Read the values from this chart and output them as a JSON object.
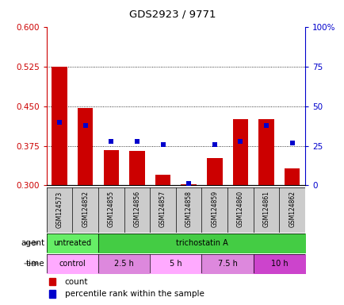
{
  "title": "GDS2923 / 9771",
  "samples": [
    "GSM124573",
    "GSM124852",
    "GSM124855",
    "GSM124856",
    "GSM124857",
    "GSM124858",
    "GSM124859",
    "GSM124860",
    "GSM124861",
    "GSM124862"
  ],
  "count_values": [
    0.525,
    0.447,
    0.367,
    0.365,
    0.32,
    0.302,
    0.352,
    0.425,
    0.425,
    0.332
  ],
  "percentile_values": [
    40,
    38,
    28,
    28,
    26,
    1,
    26,
    28,
    38,
    27
  ],
  "ylim_left": [
    0.3,
    0.6
  ],
  "yticks_left": [
    0.3,
    0.375,
    0.45,
    0.525,
    0.6
  ],
  "ylim_right": [
    0,
    100
  ],
  "yticks_right": [
    0,
    25,
    50,
    75,
    100
  ],
  "yticklabels_right": [
    "0",
    "25",
    "50",
    "75",
    "100%"
  ],
  "count_color": "#cc0000",
  "percentile_color": "#0000cc",
  "agent_row": [
    {
      "label": "untreated",
      "start": 0,
      "end": 2,
      "color": "#66ee66"
    },
    {
      "label": "trichostatin A",
      "start": 2,
      "end": 10,
      "color": "#44cc44"
    }
  ],
  "time_row": [
    {
      "label": "control",
      "start": 0,
      "end": 2,
      "color": "#ffaaff"
    },
    {
      "label": "2.5 h",
      "start": 2,
      "end": 4,
      "color": "#dd88dd"
    },
    {
      "label": "5 h",
      "start": 4,
      "end": 6,
      "color": "#ffaaff"
    },
    {
      "label": "7.5 h",
      "start": 6,
      "end": 8,
      "color": "#dd88dd"
    },
    {
      "label": "10 h",
      "start": 8,
      "end": 10,
      "color": "#cc44cc"
    }
  ],
  "bar_width": 0.6,
  "tick_color_left": "#cc0000",
  "tick_color_right": "#0000cc",
  "dotted_line_yvals": [
    0.375,
    0.45,
    0.525
  ],
  "background_color": "#ffffff"
}
